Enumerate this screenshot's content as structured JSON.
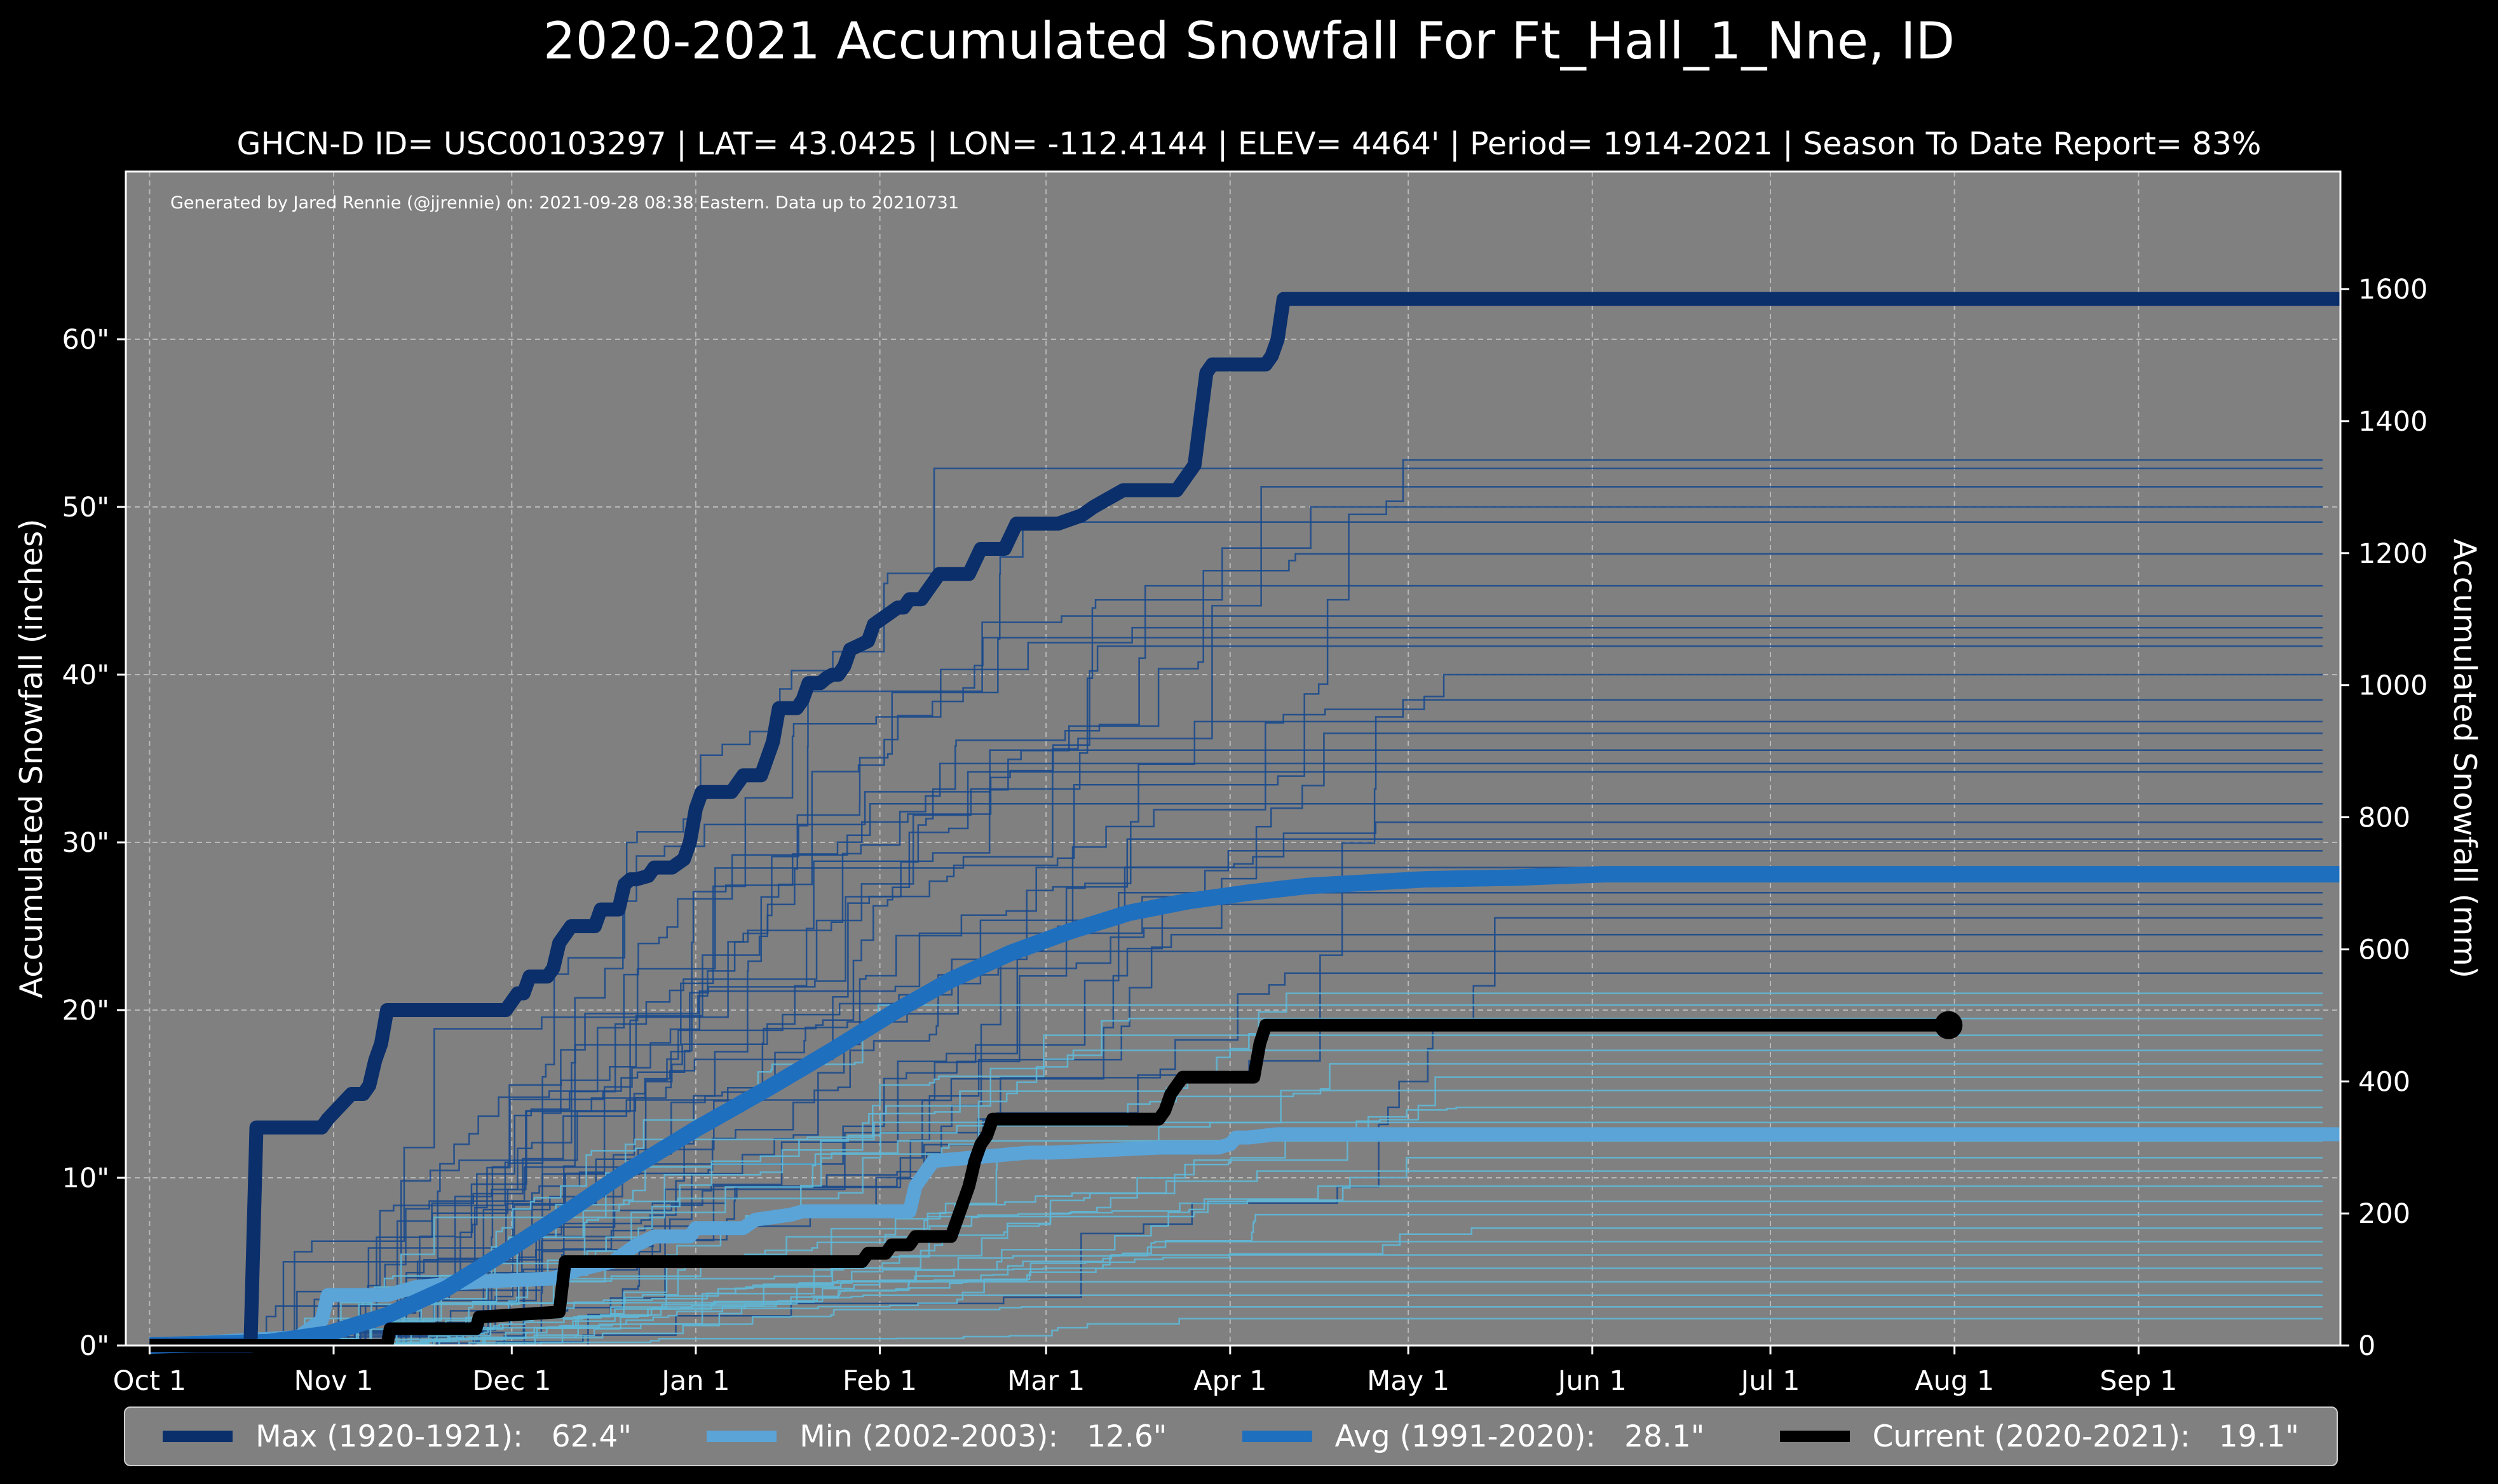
{
  "chart_data": {
    "type": "line",
    "title": "2020-2021 Accumulated Snowfall For Ft_Hall_1_Nne, ID",
    "subtitle": "GHCN-D ID= USC00103297 | LAT= 43.0425 | LON= -112.4144 | ELEV= 4464' | Period= 1914-2021 | Season To Date Report= 83%",
    "credit": "Generated by Jared Rennie (@jjrennie) on: 2021-09-28 08:38 Eastern. Data up to 20210731",
    "ylabel": "Accumulated Snowfall (inches)",
    "ylabel_right": "Accumulated Snowfall (mm)",
    "ylim": [
      0,
      70
    ],
    "ylim_right_mm": [
      0,
      1778
    ],
    "y_ticks": [
      0,
      10,
      20,
      30,
      40,
      50,
      60
    ],
    "y_tick_labels": [
      "0\"",
      "10\"",
      "20\"",
      "30\"",
      "40\"",
      "50\"",
      "60\""
    ],
    "y_ticks_right": [
      0,
      200,
      400,
      600,
      800,
      1000,
      1200,
      1400,
      1600
    ],
    "y_tick_labels_right": [
      "0",
      "200",
      "400",
      "600",
      "800",
      "1000",
      "1200",
      "1400",
      "1600"
    ],
    "x_ticks_day": [
      0,
      31,
      61,
      92,
      123,
      151,
      182,
      212,
      243,
      273,
      304,
      335
    ],
    "x_tick_labels": [
      "Oct 1",
      "Nov 1",
      "Dec 1",
      "Jan 1",
      "Feb 1",
      "Mar 1",
      "Apr 1",
      "May 1",
      "Jun 1",
      "Jul 1",
      "Aug 1",
      "Sep 1"
    ],
    "x_range_days": [
      -4,
      369
    ],
    "colors": {
      "background": "#000000",
      "plot_bg": "#808080",
      "max": "#0b2f6b",
      "min": "#5aa4d8",
      "avg": "#1f6fbf",
      "current": "#000000",
      "history_dark": "#1b4a8c",
      "history_light": "#5fb7d6"
    },
    "series": [
      {
        "name": "Max (1920-1921)",
        "key": "max",
        "x": [
          0,
          17,
          18,
          19,
          29,
          30,
          34,
          36,
          37,
          38,
          39,
          40,
          60,
          61,
          62,
          63,
          64,
          65,
          67,
          68,
          69,
          71,
          72,
          73,
          75,
          76,
          79,
          80,
          81,
          82,
          84,
          85,
          88,
          90,
          91,
          92,
          93,
          94,
          95,
          98,
          99,
          100,
          101,
          103,
          104,
          105,
          106,
          109,
          110,
          111,
          112,
          113,
          114,
          115,
          116,
          117,
          118,
          121,
          122,
          124,
          126,
          127,
          128,
          129,
          130,
          131,
          132,
          133,
          135,
          137,
          138,
          140,
          141,
          144,
          146,
          151,
          153,
          157,
          159,
          164,
          166,
          172,
          173,
          175,
          176,
          178,
          179,
          180,
          181,
          188,
          189,
          190,
          191,
          192,
          196,
          197,
          369
        ],
        "values": [
          0,
          0,
          13,
          13,
          13,
          13.5,
          15,
          15,
          15.5,
          17,
          18,
          20,
          20,
          20.5,
          21,
          21,
          22,
          22,
          22,
          22.5,
          24,
          25,
          25,
          25,
          25,
          26,
          26,
          27.5,
          27.8,
          27.8,
          28,
          28.5,
          28.5,
          29,
          30,
          32,
          33,
          33,
          33,
          33,
          33.5,
          34,
          34,
          34,
          35,
          36,
          38,
          38,
          38.5,
          39.5,
          39.5,
          39.5,
          39.8,
          40,
          40,
          40.5,
          41.5,
          42,
          43,
          43.5,
          44,
          44,
          44.5,
          44.5,
          44.5,
          45,
          45.5,
          46,
          46,
          46,
          46,
          47.5,
          47.5,
          47.5,
          49,
          49,
          49,
          49.5,
          50,
          51,
          51,
          51,
          51,
          52,
          52.5,
          58,
          58.5,
          58.5,
          58.5,
          58.5,
          59,
          60,
          62.4,
          62.4,
          62.4,
          62.4,
          62.4
        ]
      },
      {
        "name": "Min (2002-2003)",
        "key": "min",
        "x": [
          0,
          25,
          29,
          30,
          40,
          42,
          45,
          55,
          68,
          72,
          78,
          82,
          85,
          91,
          92,
          100,
          102,
          108,
          110,
          128,
          129,
          130,
          132,
          148,
          152,
          170,
          180,
          182,
          183,
          185,
          190,
          369
        ],
        "values": [
          0,
          0.5,
          1.5,
          3,
          3,
          3.2,
          3.5,
          3.8,
          4,
          4.5,
          5,
          6,
          6.5,
          6.5,
          7,
          7,
          7.5,
          7.8,
          8,
          8,
          9.5,
          10,
          11,
          11.5,
          11.5,
          11.8,
          11.8,
          12,
          12.4,
          12.4,
          12.6,
          12.6
        ]
      },
      {
        "name": "Avg (1991-2020)",
        "key": "avg",
        "x": [
          0,
          20,
          30,
          40,
          50,
          60,
          70,
          80,
          92,
          104,
          115,
          125,
          135,
          145,
          155,
          165,
          175,
          185,
          195,
          205,
          215,
          230,
          245,
          369
        ],
        "values": [
          0,
          0.2,
          0.7,
          1.8,
          3.4,
          5.6,
          7.9,
          10.3,
          12.9,
          15.3,
          17.6,
          19.8,
          21.8,
          23.4,
          24.7,
          25.8,
          26.5,
          27.0,
          27.4,
          27.6,
          27.8,
          27.9,
          28.1,
          28.1
        ]
      },
      {
        "name": "Current (2020-2021)",
        "key": "current",
        "x": [
          0,
          40,
          40.5,
          55,
          55.5,
          69,
          70,
          120,
          121,
          124,
          125,
          128,
          129,
          135,
          136,
          137,
          138,
          139,
          140,
          141,
          142,
          143,
          144,
          145,
          170,
          171,
          172,
          173,
          174,
          175,
          186,
          187,
          188,
          303
        ],
        "values": [
          0,
          0,
          1,
          1,
          1.7,
          2,
          5,
          5,
          5.5,
          5.5,
          6,
          6,
          6.5,
          6.5,
          7.5,
          8.5,
          9.5,
          11,
          12,
          12.5,
          13.5,
          13.5,
          13.5,
          13.5,
          13.5,
          14,
          15,
          15.5,
          16,
          16,
          16,
          18,
          19.1,
          19.1
        ]
      }
    ],
    "history_final_inches": [
      52.8,
      52.3,
      51.2,
      50.0,
      49.1,
      47.2,
      45.3,
      43.5,
      42.8,
      42.2,
      41.7,
      40.0,
      38.5,
      37.2,
      36.5,
      35.5,
      34.7,
      34.2,
      32.3,
      31.2,
      30.2,
      29.5,
      28.5,
      27.0,
      26.3,
      25.5,
      24.5,
      23.5,
      22.2,
      21.0,
      20.3,
      19.5,
      18.5,
      17.6,
      16.8,
      16.0,
      15.2,
      14.2,
      13.3,
      12.2,
      11.2,
      10.4,
      9.5,
      8.6,
      7.8,
      7.0,
      6.2,
      5.4,
      4.6,
      3.8,
      3.0,
      2.3,
      1.6
    ],
    "legend": [
      {
        "key": "max",
        "label": "Max (1920-1921):   62.4\""
      },
      {
        "key": "min",
        "label": "Min (2002-2003):   12.6\""
      },
      {
        "key": "avg",
        "label": "Avg (1991-2020):   28.1\""
      },
      {
        "key": "current",
        "label": "Current (2020-2021):   19.1\""
      }
    ]
  }
}
